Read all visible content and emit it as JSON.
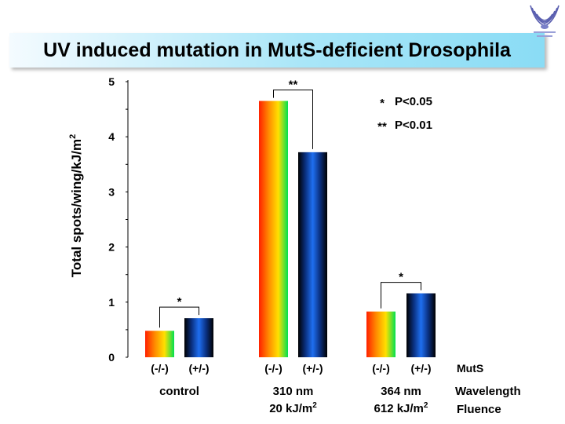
{
  "title": "UV induced mutation in MutS-deficient Drosophila",
  "chart_data": {
    "type": "bar",
    "ylabel": "Total spots/wing/kJ/m",
    "ylabel_superscript": "2",
    "ylim": [
      0,
      5
    ],
    "yticks": [
      "0",
      "1",
      "2",
      "3",
      "4",
      "5"
    ],
    "groups": [
      {
        "name": "control",
        "fluence": "",
        "fluence_sup": "",
        "bars": [
          {
            "genotype": "(-/-)",
            "value": 0.48
          },
          {
            "genotype": "(+/-)",
            "value": 0.71
          }
        ],
        "significance": "*"
      },
      {
        "name": "310 nm",
        "fluence": "20 kJ/m",
        "fluence_sup": "2",
        "bars": [
          {
            "genotype": "(-/-)",
            "value": 4.65
          },
          {
            "genotype": "(+/-)",
            "value": 3.72
          }
        ],
        "significance": "**"
      },
      {
        "name": "364 nm",
        "fluence": "612 kJ/m",
        "fluence_sup": "2",
        "bars": [
          {
            "genotype": "(-/-)",
            "value": 0.83
          },
          {
            "genotype": "(+/-)",
            "value": 1.16
          }
        ],
        "significance": "*"
      }
    ],
    "row_labels": {
      "genotype": "MutS",
      "wavelength": "Wavelength",
      "fluence": "Fluence"
    },
    "legend": [
      {
        "symbol": "*",
        "text": "P<0.05"
      },
      {
        "symbol": "**",
        "text": "P<0.01"
      }
    ],
    "colors": {
      "mutant_gradient": [
        "#ff2000",
        "#ff8a00",
        "#ffe000",
        "#00e050"
      ],
      "heterozygous_gradient": [
        "#000000",
        "#0a3080",
        "#1f6ff0",
        "#0a3080",
        "#000000"
      ]
    }
  }
}
